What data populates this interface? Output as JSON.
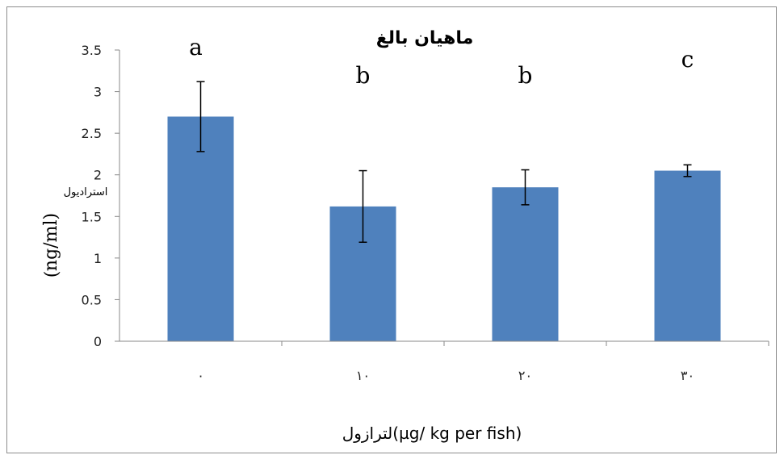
{
  "chart_data": {
    "type": "bar",
    "title": "ماهیان بالغ",
    "categories": [
      "۰",
      "۱۰",
      "۲۰",
      "۳۰"
    ],
    "values": [
      2.7,
      1.62,
      1.85,
      2.05
    ],
    "error": [
      0.42,
      0.43,
      0.21,
      0.07
    ],
    "significance": [
      "a",
      "b",
      "b",
      "c"
    ],
    "xlabel": "لترازول(µg/ kg per fish)",
    "ylabel_unit": "ng/ml)",
    "ylabel_paren": "(",
    "ylabel_name": "استرادیول",
    "ylim": [
      0,
      3.5
    ],
    "yticks": [
      "0",
      "0.5",
      "1",
      "1.5",
      "2",
      "2.5",
      "3",
      "3.5"
    ],
    "bar_color": "#4f81bd",
    "grid": false
  }
}
